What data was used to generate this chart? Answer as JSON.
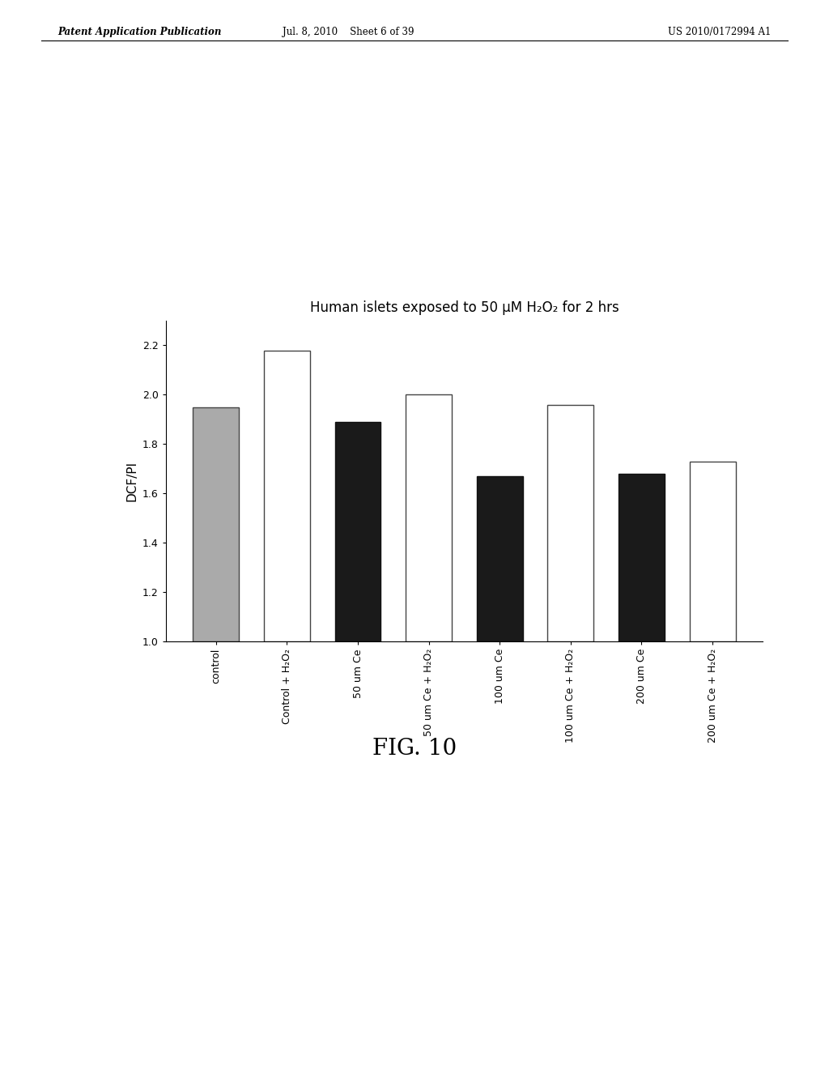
{
  "title": "Human islets exposed to 50 μM H₂O₂ for 2 hrs",
  "ylabel": "DCF/PI",
  "ylim": [
    1.0,
    2.3
  ],
  "yticks": [
    1.0,
    1.2,
    1.4,
    1.6,
    1.8,
    2.0,
    2.2
  ],
  "categories": [
    "control",
    "Control + H₂O₂",
    "50 um Ce",
    "50 um Ce + H₂O₂",
    "100 um Ce",
    "100 um Ce + H₂O₂",
    "200 um Ce",
    "200 um Ce + H₂O₂"
  ],
  "values": [
    1.95,
    2.18,
    1.89,
    2.0,
    1.67,
    1.96,
    1.68,
    1.73
  ],
  "bar_colors": [
    "#aaaaaa",
    "#ffffff",
    "#1a1a1a",
    "#ffffff",
    "#1a1a1a",
    "#ffffff",
    "#1a1a1a",
    "#ffffff"
  ],
  "bar_edge_colors": [
    "#444444",
    "#444444",
    "#111111",
    "#444444",
    "#111111",
    "#444444",
    "#111111",
    "#444444"
  ],
  "background_color": "#ffffff",
  "fig_caption": "FIG. 10",
  "header_left": "Patent Application Publication",
  "header_center": "Jul. 8, 2010    Sheet 6 of 39",
  "header_right": "US 2010/0172994 A1",
  "title_fontsize": 12,
  "ylabel_fontsize": 11,
  "tick_fontsize": 9,
  "caption_fontsize": 20
}
